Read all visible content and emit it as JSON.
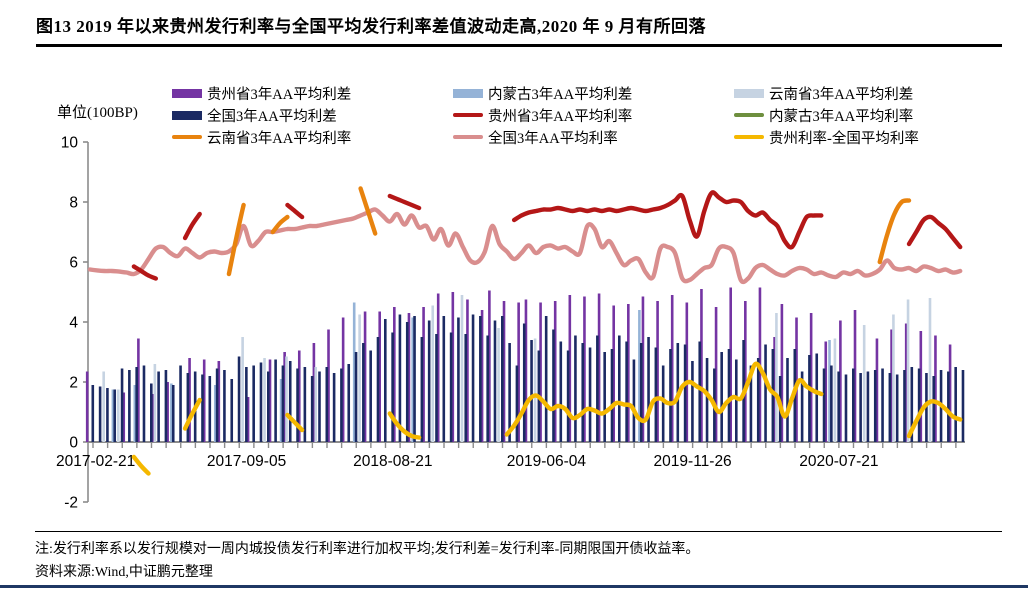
{
  "page": {
    "title": "图13  2019 年以来贵州发行利率与全国平均发行利率差值波动走高,2020 年 9 月有所回落",
    "note_line1": "注:发行利率系以发行规模对一周内城投债发行利率进行加权平均;发行利差=发行利率-同期限国开债收益率。",
    "note_line2": "资料来源:Wind,中证鹏元整理",
    "title_rule_color": "#000000",
    "bottom_rule_color": "#1f3864"
  },
  "chart_data": {
    "type": "bar+line combo",
    "title": "",
    "unit_label": "单位(100BP)",
    "ylabel": "",
    "xlabel": "",
    "ylim": [
      -2,
      10
    ],
    "y_ticks": [
      10,
      8,
      6,
      4,
      2,
      0,
      -2
    ],
    "grid": "off",
    "legend_position": "top",
    "axis_color": "#8c8c8c",
    "n_slots": 120,
    "x_tick_slots": [
      0,
      21,
      41,
      62,
      82,
      102
    ],
    "x_tick_labels": [
      "2017-02-21",
      "2017-09-05",
      "2018-08-21",
      "2019-06-04",
      "2019-11-26",
      "2020-07-21"
    ],
    "series": [
      {
        "key": "guizhou_spread",
        "name": "贵州省3年AA平均利差",
        "type": "bar",
        "color": "#7434a3",
        "values": [
          2.35,
          null,
          null,
          null,
          null,
          1.65,
          null,
          3.45,
          null,
          1.6,
          null,
          2.0,
          null,
          null,
          2.8,
          null,
          2.75,
          null,
          2.7,
          null,
          null,
          null,
          1.5,
          null,
          null,
          2.75,
          null,
          3.0,
          null,
          3.05,
          null,
          3.3,
          null,
          3.75,
          null,
          4.15,
          null,
          null,
          4.35,
          null,
          4.35,
          null,
          4.5,
          null,
          4.3,
          null,
          4.5,
          null,
          4.95,
          null,
          5.0,
          null,
          4.75,
          null,
          4.4,
          5.05,
          null,
          4.7,
          null,
          4.65,
          4.75,
          null,
          4.65,
          null,
          4.7,
          null,
          4.9,
          null,
          4.85,
          null,
          4.95,
          null,
          4.55,
          null,
          4.6,
          null,
          4.85,
          null,
          4.7,
          null,
          4.9,
          null,
          4.65,
          null,
          5.1,
          null,
          4.5,
          null,
          5.15,
          null,
          4.7,
          null,
          5.15,
          null,
          3.5,
          4.6,
          null,
          4.15,
          null,
          4.3,
          null,
          3.35,
          null,
          4.05,
          null,
          4.4,
          null,
          null,
          3.45,
          null,
          3.75,
          null,
          3.95,
          null,
          3.7,
          null,
          3.55,
          null,
          3.25,
          null
        ]
      },
      {
        "key": "neimenggu_spread",
        "name": "内蒙古3年AA平均利差",
        "type": "bar",
        "color": "#95b3d7",
        "values": [
          null,
          null,
          null,
          1.75,
          null,
          null,
          1.9,
          null,
          null,
          null,
          null,
          1.95,
          null,
          null,
          null,
          null,
          null,
          1.9,
          null,
          null,
          null,
          null,
          null,
          null,
          null,
          null,
          2.1,
          null,
          null,
          null,
          null,
          null,
          null,
          null,
          null,
          null,
          4.65,
          null,
          null,
          null,
          null,
          null,
          null,
          null,
          4.15,
          null,
          null,
          null,
          null,
          null,
          null,
          null,
          null,
          null,
          null,
          null,
          null,
          null,
          null,
          null,
          null,
          null,
          null,
          null,
          null,
          null,
          null,
          null,
          null,
          null,
          null,
          null,
          null,
          null,
          null,
          4.4,
          null,
          null,
          null,
          null,
          null,
          null,
          null,
          null,
          null,
          null,
          null,
          null,
          null,
          null,
          null,
          null,
          null,
          null,
          null,
          null,
          null,
          null,
          null,
          null,
          null,
          3.4,
          null,
          null,
          null,
          null,
          null,
          null,
          null,
          null,
          null,
          null,
          null,
          null,
          null,
          null,
          null,
          null,
          null,
          null
        ]
      },
      {
        "key": "yunnan_spread",
        "name": "云南省3年AA平均利差",
        "type": "bar",
        "color": "#c6d3e2",
        "values": [
          null,
          null,
          2.35,
          null,
          1.75,
          null,
          null,
          null,
          null,
          2.6,
          null,
          null,
          null,
          null,
          null,
          null,
          null,
          null,
          null,
          null,
          null,
          3.5,
          null,
          null,
          2.8,
          null,
          null,
          2.85,
          null,
          null,
          null,
          2.5,
          null,
          null,
          null,
          null,
          null,
          4.25,
          null,
          null,
          null,
          null,
          null,
          null,
          null,
          null,
          null,
          4.55,
          null,
          null,
          null,
          4.9,
          null,
          null,
          null,
          null,
          3.8,
          null,
          null,
          null,
          null,
          3.45,
          null,
          null,
          null,
          null,
          null,
          null,
          null,
          null,
          null,
          null,
          null,
          null,
          null,
          null,
          null,
          null,
          null,
          null,
          null,
          null,
          null,
          null,
          null,
          null,
          null,
          null,
          null,
          null,
          null,
          null,
          null,
          null,
          4.3,
          null,
          null,
          null,
          null,
          null,
          null,
          null,
          3.45,
          null,
          null,
          null,
          3.9,
          null,
          null,
          null,
          4.25,
          null,
          4.75,
          null,
          null,
          4.8,
          null,
          null,
          null,
          null
        ]
      },
      {
        "key": "national_spread",
        "name": "全国3年AA平均利差",
        "type": "bar",
        "color": "#1b2a63",
        "values": [
          1.9,
          1.85,
          1.8,
          1.75,
          2.45,
          2.4,
          2.5,
          2.55,
          1.95,
          2.35,
          2.4,
          1.9,
          2.55,
          2.3,
          2.35,
          2.25,
          2.2,
          2.45,
          2.4,
          2.1,
          2.85,
          2.5,
          2.55,
          2.65,
          2.35,
          2.75,
          2.55,
          2.7,
          2.45,
          2.5,
          2.2,
          2.35,
          2.5,
          2.3,
          2.45,
          2.6,
          3.0,
          3.3,
          3.05,
          3.5,
          4.1,
          3.65,
          4.25,
          4.0,
          4.2,
          3.5,
          4.05,
          3.6,
          4.2,
          3.65,
          4.15,
          3.6,
          4.25,
          4.2,
          3.55,
          4.05,
          4.2,
          3.3,
          2.55,
          3.95,
          3.4,
          3.05,
          4.2,
          3.75,
          3.35,
          3.05,
          3.55,
          3.3,
          3.15,
          3.55,
          3.0,
          3.1,
          3.55,
          3.35,
          2.75,
          3.3,
          3.5,
          3.15,
          2.55,
          3.1,
          3.3,
          3.25,
          2.7,
          3.35,
          2.8,
          2.45,
          3.0,
          3.1,
          2.75,
          3.4,
          2.55,
          2.8,
          3.25,
          3.1,
          2.2,
          2.8,
          3.1,
          2.35,
          2.9,
          2.95,
          2.45,
          2.55,
          2.35,
          2.25,
          2.45,
          2.3,
          2.35,
          2.4,
          2.45,
          2.3,
          2.25,
          2.4,
          2.5,
          2.45,
          2.3,
          2.2,
          2.4,
          2.35,
          2.5,
          2.4
        ]
      },
      {
        "key": "guizhou_rate",
        "name": "贵州省3年AA平均利率",
        "type": "line",
        "color": "#b41717",
        "values": [
          null,
          null,
          null,
          null,
          null,
          null,
          5.85,
          5.7,
          5.55,
          5.45,
          null,
          null,
          null,
          6.8,
          7.25,
          7.6,
          null,
          null,
          null,
          null,
          null,
          null,
          null,
          null,
          null,
          null,
          null,
          7.9,
          7.7,
          7.5,
          null,
          null,
          null,
          null,
          null,
          null,
          null,
          null,
          null,
          null,
          null,
          8.2,
          8.1,
          8.0,
          7.9,
          7.8,
          null,
          null,
          null,
          null,
          null,
          null,
          null,
          null,
          null,
          null,
          null,
          null,
          7.4,
          7.55,
          7.65,
          7.7,
          7.75,
          7.75,
          7.8,
          7.75,
          7.7,
          7.75,
          7.7,
          7.75,
          7.7,
          7.75,
          7.7,
          7.75,
          7.8,
          7.75,
          7.7,
          7.75,
          7.8,
          7.9,
          8.05,
          8.2,
          7.4,
          6.85,
          7.7,
          8.3,
          8.15,
          8.0,
          8.05,
          8.0,
          7.7,
          7.55,
          7.65,
          7.4,
          7.2,
          6.7,
          6.5,
          7.0,
          7.5,
          7.55,
          7.55,
          null,
          null,
          null,
          null,
          null,
          null,
          null,
          null,
          null,
          null,
          null,
          6.6,
          7.0,
          7.4,
          7.5,
          7.3,
          7.1,
          6.8,
          6.5
        ]
      },
      {
        "key": "neimenggu_rate",
        "name": "内蒙古3年AA平均利率",
        "type": "line",
        "color": "#6e8f3e",
        "values": [
          null,
          null,
          null,
          null,
          null,
          null,
          null,
          null,
          null,
          null,
          null,
          null,
          null,
          null,
          null,
          null,
          null,
          null,
          null,
          null,
          null,
          null,
          null,
          null,
          null,
          null,
          null,
          null,
          null,
          null,
          null,
          null,
          null,
          null,
          null,
          null,
          null,
          null,
          null,
          null,
          null,
          null,
          null,
          null,
          null,
          null,
          null,
          null,
          null,
          null,
          null,
          null,
          null,
          null,
          null,
          null,
          null,
          null,
          null,
          null,
          null,
          null,
          null,
          null,
          null,
          null,
          null,
          null,
          null,
          null,
          null,
          null,
          null,
          null,
          null,
          null,
          null,
          null,
          null,
          null,
          null,
          null,
          null,
          null,
          null,
          null,
          null,
          null,
          null,
          null,
          null,
          null,
          null,
          null,
          null,
          null,
          null,
          null,
          null,
          null,
          null,
          null,
          null,
          null,
          null,
          null,
          null,
          null,
          null,
          null,
          null,
          null,
          null,
          null,
          null,
          null,
          null,
          null,
          null,
          null
        ]
      },
      {
        "key": "yunnan_rate",
        "name": "云南省3年AA平均利率",
        "type": "line",
        "color": "#e8830e",
        "values": [
          null,
          null,
          null,
          null,
          null,
          null,
          null,
          null,
          null,
          null,
          null,
          null,
          null,
          null,
          null,
          null,
          null,
          null,
          null,
          5.6,
          6.8,
          7.9,
          null,
          null,
          null,
          7.0,
          7.3,
          7.5,
          null,
          null,
          null,
          null,
          null,
          null,
          null,
          null,
          null,
          8.45,
          7.7,
          6.95,
          null,
          null,
          null,
          null,
          null,
          null,
          null,
          null,
          null,
          null,
          null,
          null,
          null,
          null,
          null,
          null,
          null,
          null,
          null,
          null,
          null,
          null,
          null,
          null,
          null,
          null,
          null,
          null,
          null,
          null,
          null,
          null,
          null,
          null,
          null,
          null,
          null,
          null,
          null,
          null,
          null,
          null,
          null,
          null,
          null,
          null,
          null,
          null,
          null,
          null,
          null,
          null,
          null,
          null,
          null,
          null,
          null,
          null,
          null,
          null,
          null,
          null,
          null,
          null,
          null,
          null,
          null,
          null,
          6.0,
          6.9,
          7.6,
          8.0,
          8.05,
          null,
          null,
          null,
          null,
          null,
          null,
          null
        ]
      },
      {
        "key": "national_rate",
        "name": "全国3年AA平均利率",
        "type": "line",
        "color": "#d98e8e",
        "values": [
          5.75,
          5.72,
          5.7,
          5.7,
          5.68,
          5.65,
          5.6,
          5.75,
          6.1,
          6.45,
          6.5,
          6.3,
          6.2,
          6.45,
          6.3,
          6.15,
          6.3,
          6.35,
          6.3,
          6.35,
          6.6,
          7.2,
          6.55,
          6.7,
          7.0,
          7.0,
          7.05,
          7.1,
          7.1,
          7.15,
          7.2,
          7.2,
          7.25,
          7.3,
          7.35,
          7.4,
          7.45,
          7.55,
          7.65,
          7.75,
          7.55,
          7.35,
          7.6,
          7.25,
          7.55,
          7.15,
          7.2,
          6.75,
          7.1,
          6.55,
          6.95,
          6.5,
          6.05,
          6.0,
          6.35,
          7.2,
          6.6,
          6.35,
          6.1,
          6.3,
          6.55,
          6.3,
          6.5,
          6.55,
          6.45,
          6.5,
          6.35,
          6.3,
          7.2,
          7.1,
          6.5,
          6.7,
          6.3,
          5.9,
          6.05,
          6.1,
          5.65,
          5.5,
          6.45,
          6.5,
          6.3,
          5.45,
          5.4,
          5.6,
          5.8,
          5.9,
          6.45,
          6.5,
          6.3,
          5.4,
          5.45,
          5.8,
          5.9,
          5.75,
          5.6,
          5.55,
          5.7,
          5.8,
          5.75,
          5.6,
          5.65,
          5.55,
          5.5,
          5.65,
          5.6,
          5.7,
          5.55,
          5.6,
          5.75,
          6.05,
          5.8,
          5.75,
          5.8,
          5.7,
          5.85,
          5.8,
          5.7,
          5.75,
          5.65,
          5.7
        ]
      },
      {
        "key": "diff",
        "name": "贵州利率-全国平均利率",
        "type": "line",
        "color": "#f5b800",
        "values": [
          null,
          null,
          null,
          null,
          null,
          null,
          -0.5,
          -0.8,
          -1.05,
          null,
          null,
          null,
          null,
          0.45,
          0.95,
          1.4,
          null,
          null,
          null,
          null,
          null,
          null,
          null,
          null,
          null,
          null,
          null,
          0.9,
          0.65,
          0.4,
          null,
          null,
          null,
          null,
          null,
          null,
          null,
          null,
          null,
          null,
          null,
          0.95,
          0.6,
          0.35,
          0.2,
          0.15,
          null,
          null,
          null,
          null,
          null,
          null,
          null,
          null,
          null,
          null,
          null,
          0.25,
          0.55,
          0.95,
          1.4,
          1.55,
          1.35,
          1.1,
          1.2,
          1.1,
          0.8,
          0.9,
          1.1,
          1.05,
          0.95,
          1.1,
          1.3,
          1.25,
          1.2,
          0.8,
          0.75,
          1.35,
          1.45,
          1.3,
          1.35,
          1.85,
          2.0,
          1.85,
          1.7,
          1.4,
          1.0,
          1.3,
          1.5,
          1.45,
          2.0,
          2.6,
          2.3,
          1.75,
          1.5,
          0.85,
          1.45,
          2.05,
          1.85,
          1.7,
          1.6,
          null,
          null,
          null,
          null,
          null,
          null,
          null,
          null,
          null,
          null,
          null,
          0.2,
          0.7,
          1.15,
          1.35,
          1.3,
          1.1,
          0.85,
          0.75
        ]
      }
    ]
  }
}
